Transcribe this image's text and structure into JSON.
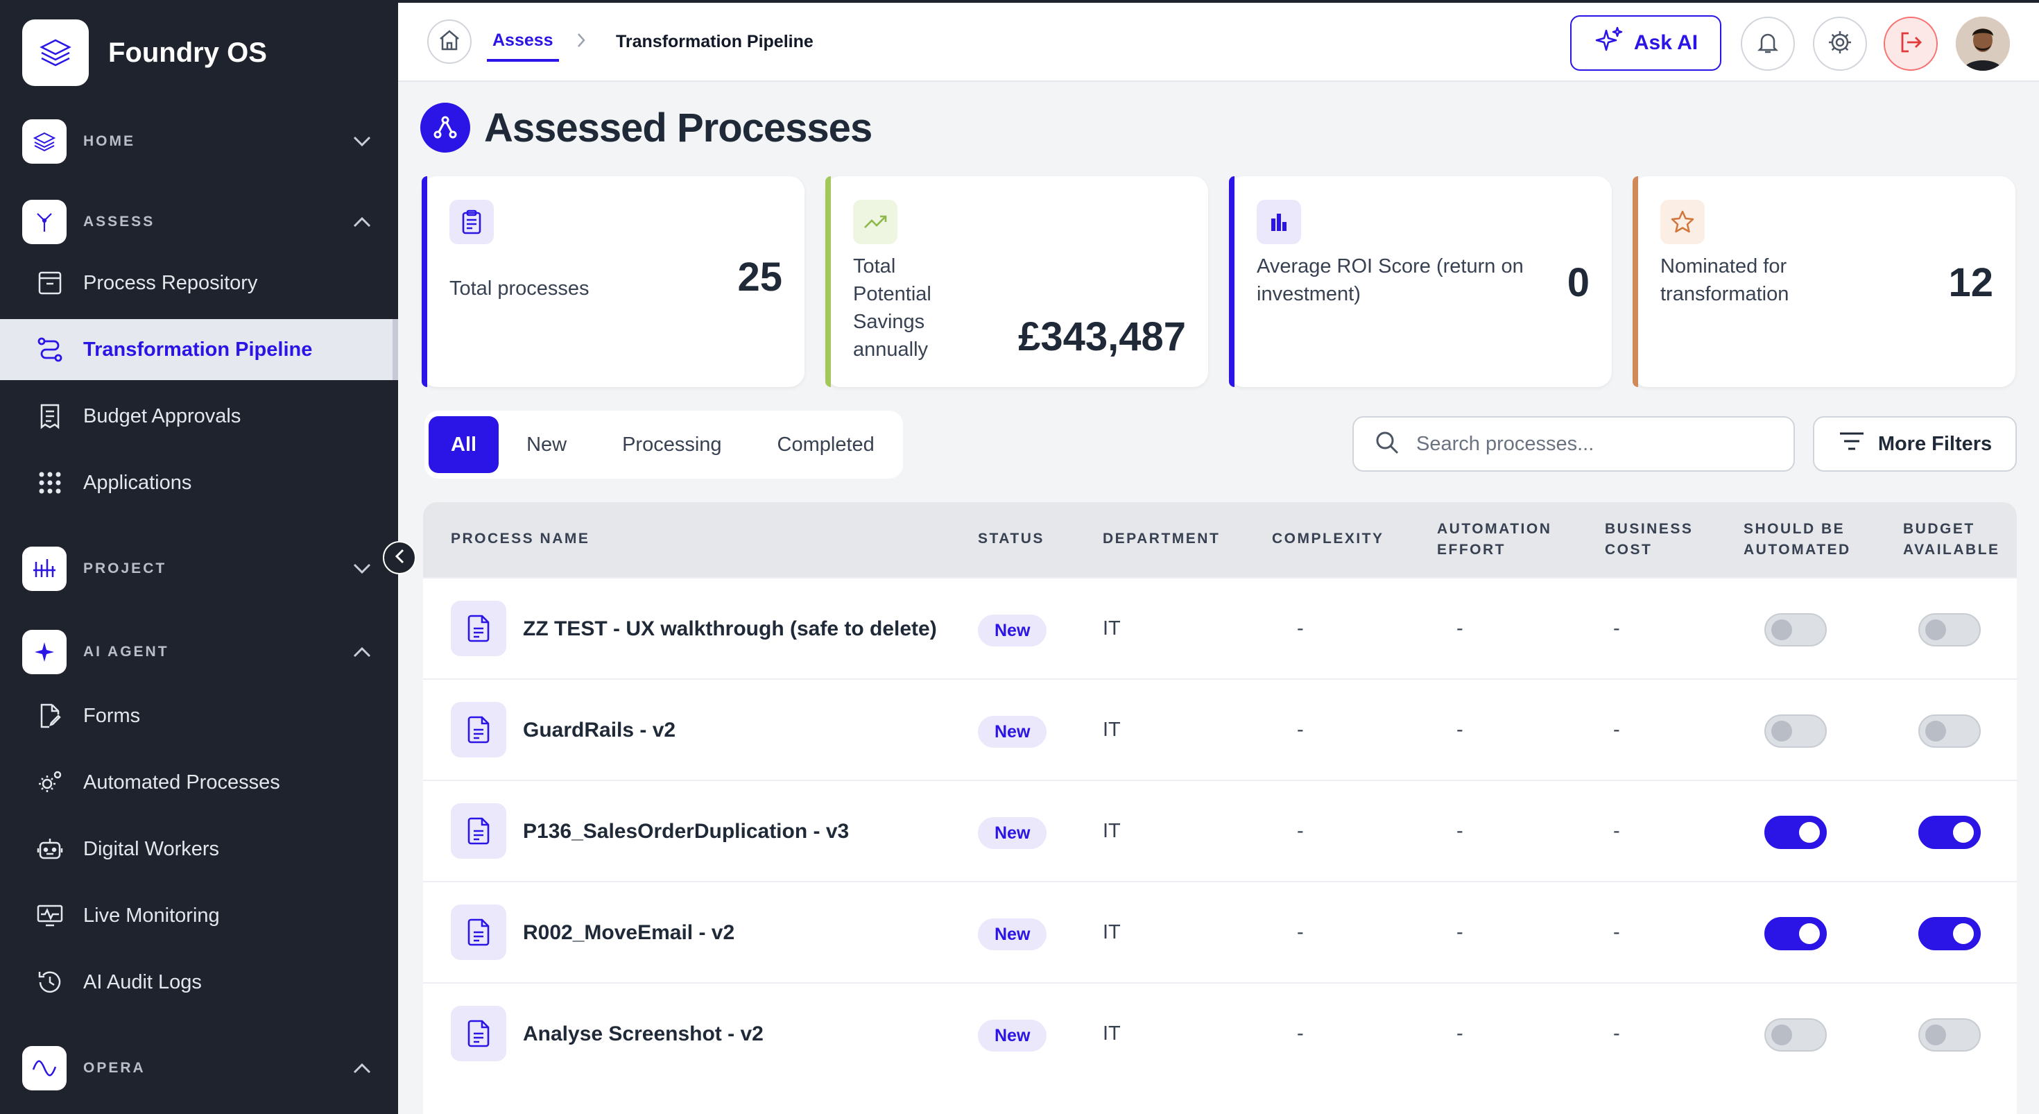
{
  "app": {
    "name": "Foundry OS"
  },
  "sidebar": {
    "sections": [
      {
        "label": "HOME",
        "icon": "layers-icon",
        "expanded": false
      },
      {
        "label": "ASSESS",
        "icon": "branch-icon",
        "expanded": true
      },
      {
        "label": "PROJECT",
        "icon": "bars-icon",
        "expanded": false
      },
      {
        "label": "AI AGENT",
        "icon": "sparkle-icon",
        "expanded": true
      },
      {
        "label": "OPERA",
        "icon": "wave-icon",
        "expanded": true
      }
    ],
    "assess_items": [
      {
        "label": "Process Repository",
        "icon": "archive-icon"
      },
      {
        "label": "Transformation Pipeline",
        "icon": "route-icon",
        "active": true
      },
      {
        "label": "Budget Approvals",
        "icon": "receipt-icon"
      },
      {
        "label": "Applications",
        "icon": "grid-dots-icon"
      }
    ],
    "agent_items": [
      {
        "label": "Forms",
        "icon": "file-edit-icon"
      },
      {
        "label": "Automated Processes",
        "icon": "cog-cluster-icon"
      },
      {
        "label": "Digital Workers",
        "icon": "robot-icon"
      },
      {
        "label": "Live Monitoring",
        "icon": "monitor-pulse-icon"
      },
      {
        "label": "AI Audit Logs",
        "icon": "history-icon"
      }
    ]
  },
  "header": {
    "breadcrumb": [
      "Assess",
      "Transformation Pipeline"
    ],
    "ask_ai_label": "Ask AI"
  },
  "page": {
    "title": "Assessed Processes"
  },
  "stats": [
    {
      "label": "Total processes",
      "value": "25",
      "accent": "#2a14e6"
    },
    {
      "label": "Total Potential Savings annually",
      "value": "£343,487",
      "accent": "#a3c75a"
    },
    {
      "label": "Average ROI Score (return on investment)",
      "value": "0",
      "accent": "#2a14e6"
    },
    {
      "label": "Nominated for transformation",
      "value": "12",
      "accent": "#d08a5a"
    }
  ],
  "filters": {
    "tabs": [
      "All",
      "New",
      "Processing",
      "Completed"
    ],
    "active_tab": "All",
    "search_placeholder": "Search processes...",
    "more_filters_label": "More Filters"
  },
  "table": {
    "columns": [
      "PROCESS NAME",
      "STATUS",
      "DEPARTMENT",
      "COMPLEXITY",
      "AUTOMATION EFFORT",
      "BUSINESS COST",
      "SHOULD BE AUTOMATED",
      "BUDGET AVAILABLE"
    ],
    "rows": [
      {
        "name": "ZZ TEST - UX walkthrough (safe to delete)",
        "status": "New",
        "department": "IT",
        "complexity": "-",
        "effort": "-",
        "cost": "-",
        "should_automate": false,
        "budget_available": false
      },
      {
        "name": "GuardRails - v2",
        "status": "New",
        "department": "IT",
        "complexity": "-",
        "effort": "-",
        "cost": "-",
        "should_automate": false,
        "budget_available": false
      },
      {
        "name": "P136_SalesOrderDuplication - v3",
        "status": "New",
        "department": "IT",
        "complexity": "-",
        "effort": "-",
        "cost": "-",
        "should_automate": true,
        "budget_available": true
      },
      {
        "name": "R002_MoveEmail - v2",
        "status": "New",
        "department": "IT",
        "complexity": "-",
        "effort": "-",
        "cost": "-",
        "should_automate": true,
        "budget_available": true
      },
      {
        "name": "Analyse Screenshot - v2",
        "status": "New",
        "department": "IT",
        "complexity": "-",
        "effort": "-",
        "cost": "-",
        "should_automate": false,
        "budget_available": false
      }
    ]
  },
  "colors": {
    "accent": "#2a14e6",
    "sidebar_bg": "#1e232d",
    "page_bg": "#f3f4f6"
  }
}
